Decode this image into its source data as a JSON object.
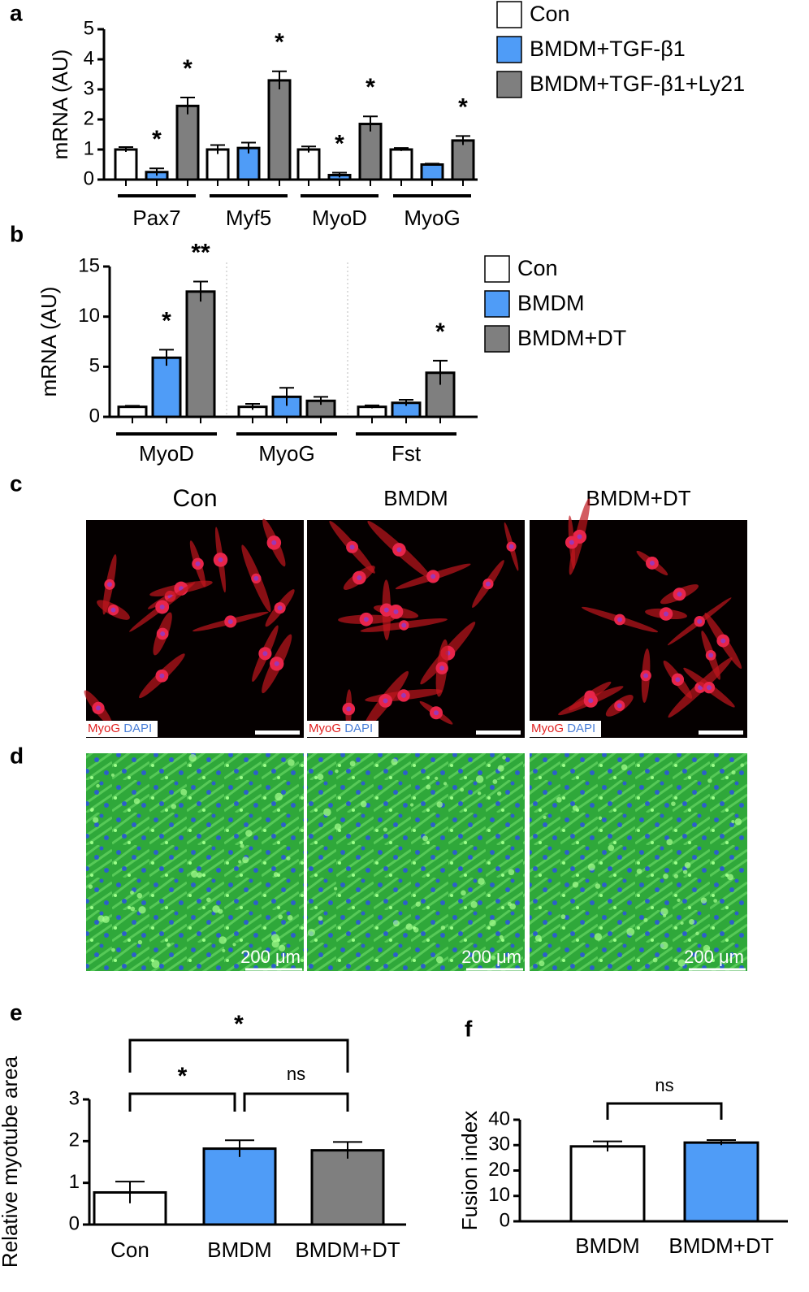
{
  "panel_labels": [
    "a",
    "b",
    "c",
    "d",
    "e",
    "f"
  ],
  "chart_data": [
    {
      "type": "bar",
      "ylabel": "mRNA (AU)",
      "ylim": [
        0,
        5
      ],
      "yticks": [
        0,
        1,
        2,
        3,
        4,
        5
      ],
      "categories": [
        "Pax7",
        "Myf5",
        "MyoD",
        "MyoG"
      ],
      "series": [
        {
          "name": "Con",
          "color": "#ffffff",
          "values": [
            1.0,
            1.0,
            1.0,
            1.0
          ],
          "errors": [
            0.08,
            0.15,
            0.1,
            0.05
          ]
        },
        {
          "name": "BMDM+TGF-β1",
          "color": "#4f9cf7",
          "values": [
            0.25,
            1.05,
            0.15,
            0.5
          ],
          "errors": [
            0.12,
            0.18,
            0.08,
            0.03
          ],
          "labels": [
            "*",
            null,
            "*",
            null
          ]
        },
        {
          "name": "BMDM+TGF-β1+Ly21",
          "color": "#7f7f7f",
          "values": [
            2.45,
            3.3,
            1.85,
            1.3
          ],
          "errors": [
            0.28,
            0.3,
            0.25,
            0.15
          ],
          "labels": [
            "*",
            "*",
            "*",
            "*"
          ]
        }
      ]
    },
    {
      "type": "bar",
      "ylabel": "mRNA (AU)",
      "ylim": [
        0,
        15
      ],
      "yticks": [
        0,
        5,
        10,
        15
      ],
      "categories": [
        "MyoD",
        "MyoG",
        "Fst"
      ],
      "series": [
        {
          "name": "Con",
          "color": "#ffffff",
          "values": [
            1.0,
            1.0,
            1.0
          ],
          "errors": [
            0.1,
            0.3,
            0.15
          ]
        },
        {
          "name": "BMDM",
          "color": "#4f9cf7",
          "values": [
            5.9,
            2.0,
            1.4
          ],
          "errors": [
            0.8,
            0.9,
            0.3
          ],
          "labels": [
            "*",
            null,
            null
          ]
        },
        {
          "name": "BMDM+DT",
          "color": "#7f7f7f",
          "values": [
            12.5,
            1.6,
            4.4
          ],
          "errors": [
            1.0,
            0.4,
            1.2
          ],
          "labels": [
            "**",
            null,
            "*"
          ]
        }
      ]
    },
    {
      "type": "bar",
      "ylabel": "Relative myotube area",
      "ylim": [
        0,
        3
      ],
      "yticks": [
        0,
        1,
        2,
        3
      ],
      "categories": [
        "Con",
        "BMDM",
        "BMDM+DT"
      ],
      "values": [
        0.77,
        1.82,
        1.78
      ],
      "errors": [
        0.26,
        0.2,
        0.2
      ],
      "colors": [
        "#ffffff",
        "#4f9cf7",
        "#7f7f7f"
      ],
      "brackets": [
        {
          "between": [
            "Con",
            "BMDM"
          ],
          "label": "*"
        },
        {
          "between": [
            "BMDM",
            "BMDM+DT"
          ],
          "label": "ns"
        },
        {
          "between": [
            "Con",
            "BMDM+DT"
          ],
          "label": "*"
        }
      ]
    },
    {
      "type": "bar",
      "ylabel": "Fusion index",
      "ylim": [
        0,
        40
      ],
      "yticks": [
        0,
        10,
        20,
        30,
        40
      ],
      "categories": [
        "BMDM",
        "BMDM+DT"
      ],
      "values": [
        29.5,
        31
      ],
      "errors": [
        2,
        1
      ],
      "colors": [
        "#ffffff",
        "#4f9cf7"
      ],
      "brackets": [
        {
          "between": [
            "BMDM",
            "BMDM+DT"
          ],
          "label": "ns"
        }
      ]
    }
  ],
  "images": {
    "titles": [
      "Con",
      "BMDM",
      "BMDM+DT"
    ],
    "stains": [
      "MyoG",
      "DAPI"
    ],
    "scale_bar": "200 μm"
  }
}
